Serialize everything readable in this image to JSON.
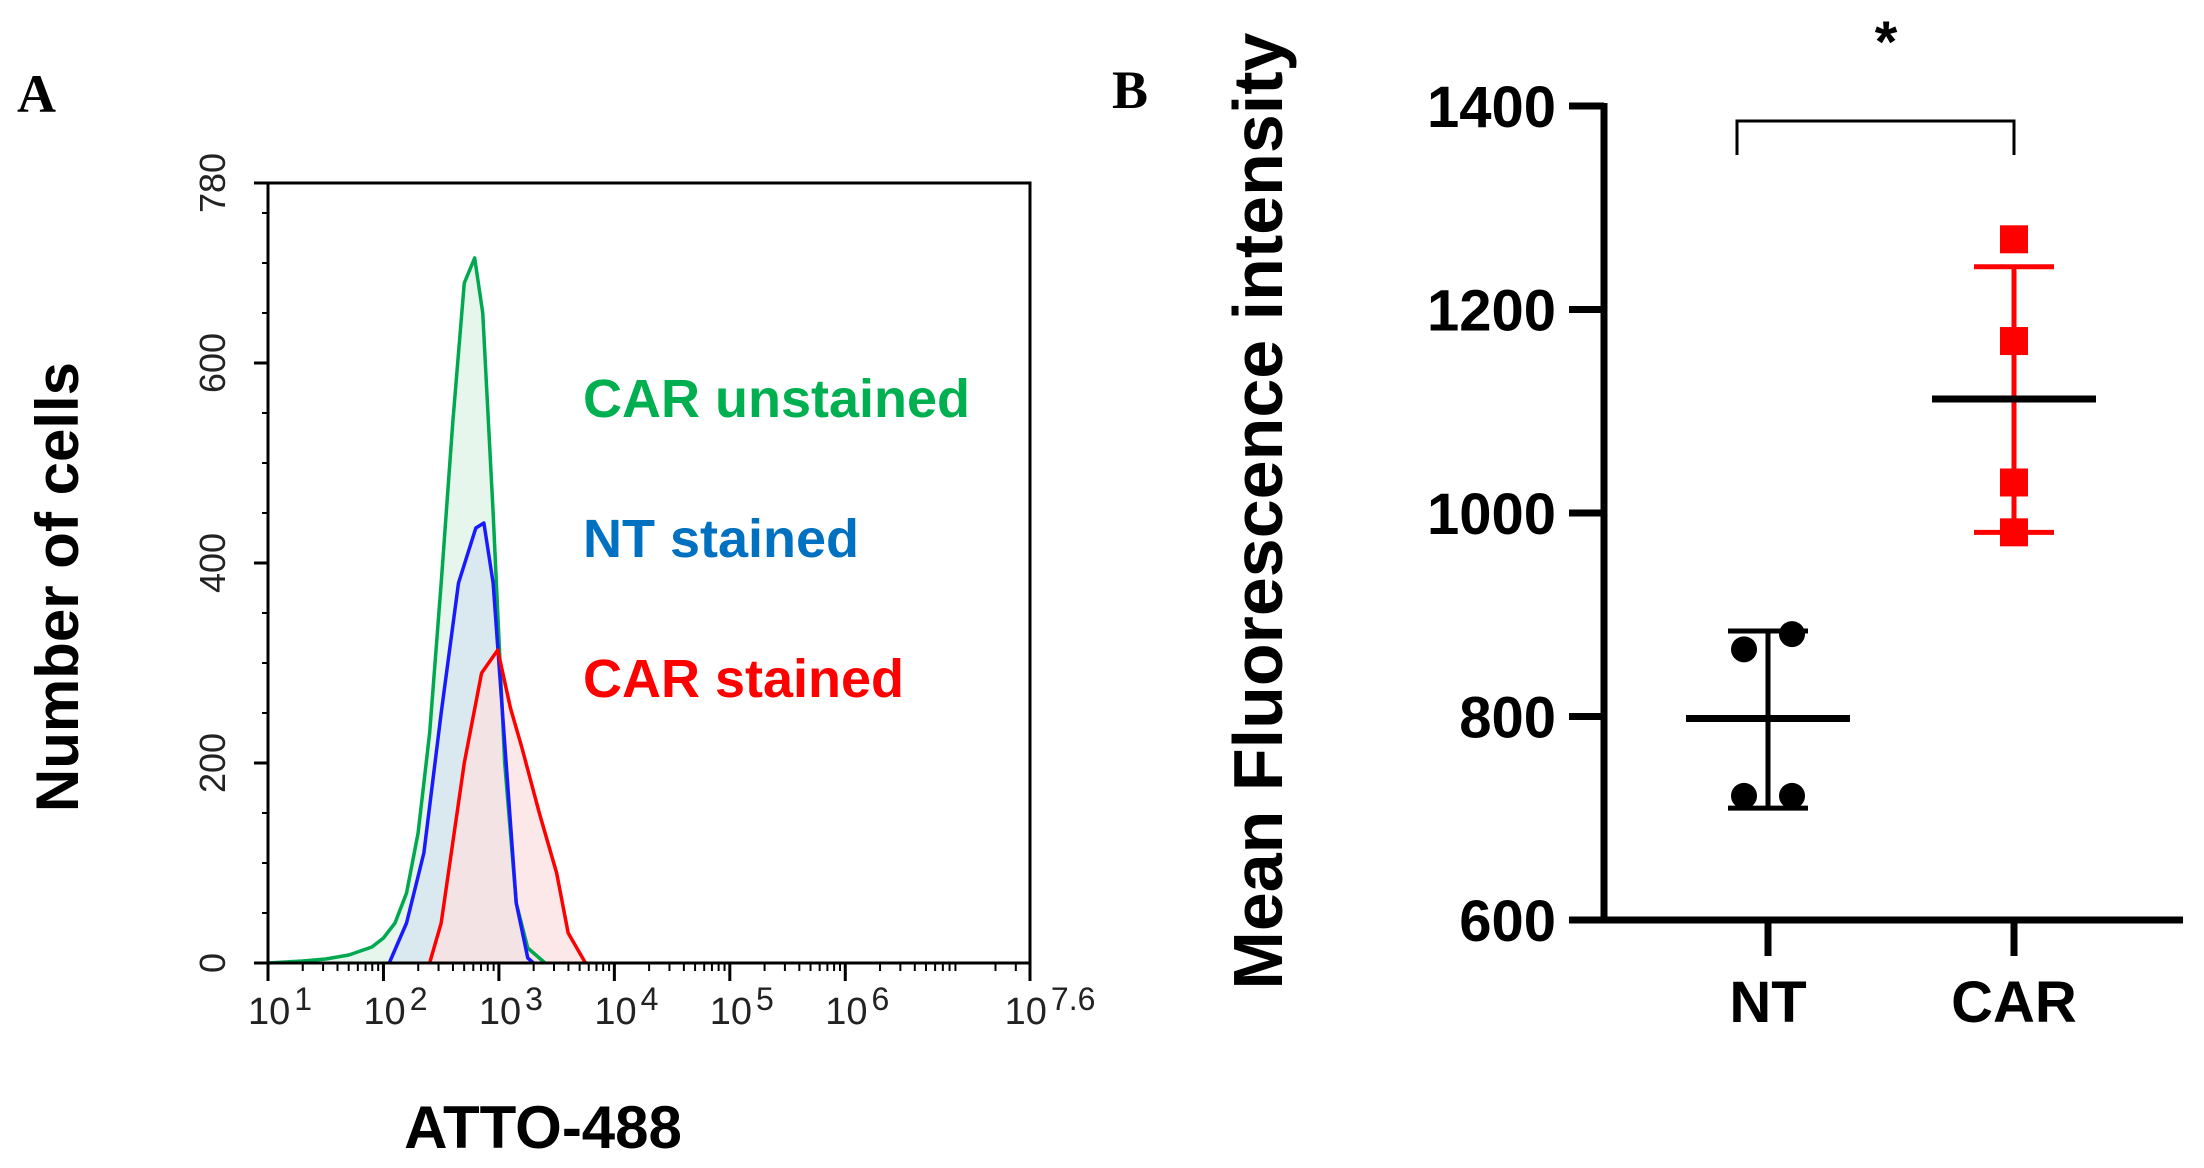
{
  "chart_data": [
    {
      "panel_label": "A",
      "type": "area",
      "xlabel": "ATTO-488",
      "ylabel": "Number of cells",
      "x_scale": "log",
      "xlim_log10": [
        1,
        7.6
      ],
      "ylim": [
        0,
        780
      ],
      "y_ticks": [
        "0",
        "200",
        "400",
        "600",
        "780"
      ],
      "x_ticks": [
        {
          "base": "10",
          "exp": "1",
          "log10": 1
        },
        {
          "base": "10",
          "exp": "2",
          "log10": 2
        },
        {
          "base": "10",
          "exp": "3",
          "log10": 3
        },
        {
          "base": "10",
          "exp": "4",
          "log10": 4
        },
        {
          "base": "10",
          "exp": "5",
          "log10": 5
        },
        {
          "base": "10",
          "exp": "6",
          "log10": 6
        },
        {
          "base": "10",
          "exp": "7.6",
          "log10": 7.6
        }
      ],
      "legend_placement": "inside-right",
      "series": [
        {
          "name": "CAR unstained",
          "color": "#00b050",
          "line_color": "#00a84f",
          "fill": "#e6f6ec",
          "points": [
            [
              1.0,
              0
            ],
            [
              1.3,
              2
            ],
            [
              1.5,
              4
            ],
            [
              1.7,
              8
            ],
            [
              1.9,
              16
            ],
            [
              2.0,
              25
            ],
            [
              2.1,
              40
            ],
            [
              2.2,
              70
            ],
            [
              2.3,
              130
            ],
            [
              2.4,
              230
            ],
            [
              2.5,
              380
            ],
            [
              2.6,
              540
            ],
            [
              2.7,
              680
            ],
            [
              2.79,
              705
            ],
            [
              2.86,
              650
            ],
            [
              2.95,
              450
            ],
            [
              3.05,
              200
            ],
            [
              3.15,
              60
            ],
            [
              3.25,
              15
            ],
            [
              3.4,
              0
            ]
          ]
        },
        {
          "name": "NT stained",
          "color": "#0070c0",
          "line_color": "#1a1aff",
          "fill": "#d6e4f2",
          "points": [
            [
              2.05,
              0
            ],
            [
              2.2,
              40
            ],
            [
              2.35,
              110
            ],
            [
              2.5,
              250
            ],
            [
              2.65,
              380
            ],
            [
              2.8,
              435
            ],
            [
              2.87,
              440
            ],
            [
              2.95,
              380
            ],
            [
              3.05,
              220
            ],
            [
              3.15,
              60
            ],
            [
              3.25,
              5
            ],
            [
              3.3,
              0
            ]
          ]
        },
        {
          "name": "CAR stained",
          "color": "#ff0000",
          "line_color": "#ff0000",
          "fill": "#fbe0e0",
          "points": [
            [
              2.4,
              0
            ],
            [
              2.5,
              40
            ],
            [
              2.6,
              120
            ],
            [
              2.7,
              200
            ],
            [
              2.85,
              290
            ],
            [
              2.99,
              313
            ],
            [
              3.1,
              255
            ],
            [
              3.2,
              215
            ],
            [
              3.35,
              150
            ],
            [
              3.5,
              90
            ],
            [
              3.6,
              30
            ],
            [
              3.75,
              0
            ]
          ]
        }
      ]
    },
    {
      "panel_label": "B",
      "type": "scatter",
      "ylabel": "Mean Fluorescence intensity",
      "xlabel": "",
      "ylim": [
        600,
        1400
      ],
      "y_ticks": [
        "600",
        "800",
        "1000",
        "1200",
        "1400"
      ],
      "categories": [
        "NT",
        "CAR"
      ],
      "significance": "*",
      "series": [
        {
          "category": "NT",
          "color": "#000000",
          "marker": "circle",
          "values": [
            866,
            881,
            722,
            722
          ],
          "mean": 798,
          "sd_low": 710,
          "sd_high": 884
        },
        {
          "category": "CAR",
          "color": "#ff0000",
          "marker": "square",
          "values": [
            1269,
            1169,
            1030,
            981
          ],
          "mean": 1112,
          "sd_low": 981,
          "sd_high": 1242
        }
      ]
    }
  ]
}
